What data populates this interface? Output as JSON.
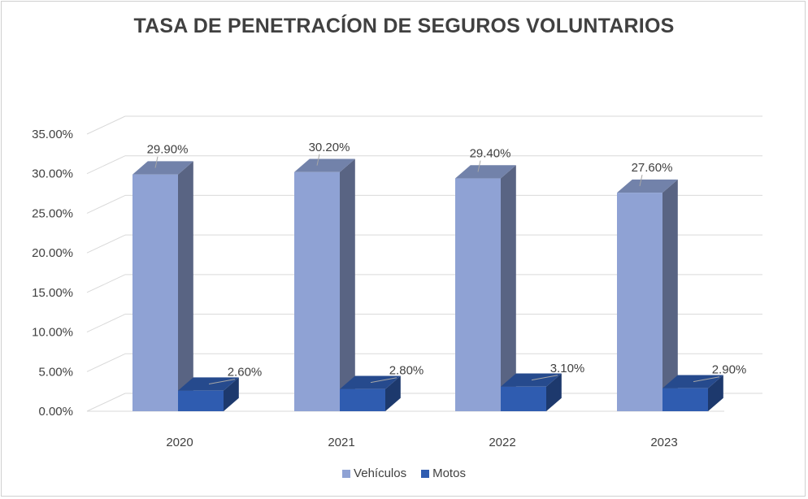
{
  "chart_data": {
    "type": "bar",
    "title": "TASA DE PENETRACÍON DE SEGUROS VOLUNTARIOS",
    "categories": [
      "2020",
      "2021",
      "2022",
      "2023"
    ],
    "series": [
      {
        "name": "Vehículos",
        "values": [
          29.9,
          30.2,
          29.4,
          27.6
        ],
        "labels": [
          "29.90%",
          "30.20%",
          "29.40%",
          "27.60%"
        ],
        "color": "#8FA2D4"
      },
      {
        "name": "Motos",
        "values": [
          2.6,
          2.8,
          3.1,
          2.9
        ],
        "labels": [
          "2.60%",
          "2.80%",
          "3.10%",
          "2.90%"
        ],
        "color": "#2F5CB0"
      }
    ],
    "ylim": [
      0,
      35
    ],
    "yticks": [
      "0.00%",
      "5.00%",
      "10.00%",
      "15.00%",
      "20.00%",
      "25.00%",
      "30.00%",
      "35.00%"
    ],
    "grid": true,
    "legend": "bottom",
    "style": "3d-column"
  }
}
